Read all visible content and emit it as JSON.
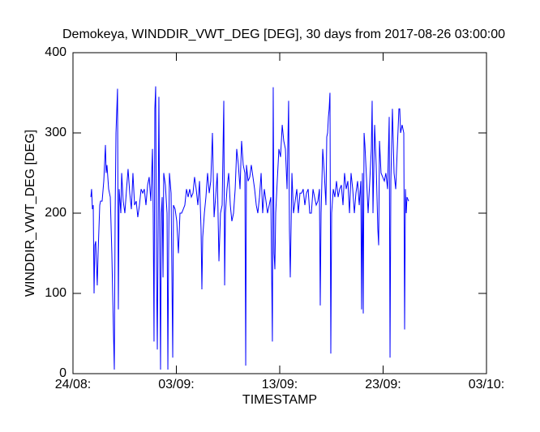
{
  "chart_data": {
    "type": "line",
    "title": "Demokeya, WINDDIR_VWT_DEG [DEG], 30 days from  2017-08-26 03:00:00",
    "x_label": "TIMESTAMP",
    "y_label": "WINDDIR_VWT_DEG [DEG]",
    "color": "#0000ff",
    "xlim": [
      0,
      40
    ],
    "xticks": [
      {
        "value": 0,
        "label": "24/08:"
      },
      {
        "value": 10,
        "label": "03/09:"
      },
      {
        "value": 20,
        "label": "13/09:"
      },
      {
        "value": 30,
        "label": "23/09:"
      },
      {
        "value": 40,
        "label": "03/10:"
      }
    ],
    "ylim": [
      0,
      400
    ],
    "yticks": [
      0,
      100,
      200,
      300,
      400
    ],
    "x": [
      1.73,
      1.8,
      1.88,
      1.96,
      2.04,
      2.12,
      2.2,
      2.35,
      2.43,
      2.59,
      2.67,
      2.82,
      2.98,
      3.14,
      3.21,
      3.29,
      3.45,
      3.61,
      3.76,
      3.92,
      4.0,
      4.08,
      4.16,
      4.31,
      4.39,
      4.47,
      4.63,
      4.71,
      4.86,
      5.02,
      5.18,
      5.33,
      5.49,
      5.65,
      5.8,
      5.96,
      6.12,
      6.27,
      6.43,
      6.59,
      6.75,
      6.9,
      7.06,
      7.22,
      7.37,
      7.53,
      7.69,
      7.76,
      7.84,
      7.92,
      8.0,
      8.08,
      8.16,
      8.31,
      8.39,
      8.47,
      8.55,
      8.63,
      8.71,
      8.78,
      8.94,
      9.1,
      9.18,
      9.25,
      9.33,
      9.49,
      9.65,
      9.72,
      9.88,
      10.04,
      10.2,
      10.35,
      10.51,
      10.67,
      10.82,
      10.98,
      11.14,
      11.29,
      11.45,
      11.61,
      11.76,
      11.92,
      12.08,
      12.24,
      12.39,
      12.47,
      12.55,
      12.71,
      12.86,
      13.02,
      13.18,
      13.33,
      13.49,
      13.65,
      13.8,
      13.96,
      14.12,
      14.27,
      14.43,
      14.59,
      14.67,
      14.75,
      14.9,
      15.06,
      15.22,
      15.37,
      15.53,
      15.69,
      15.84,
      16.0,
      16.16,
      16.31,
      16.47,
      16.63,
      16.71,
      16.78,
      16.94,
      17.1,
      17.25,
      17.41,
      17.57,
      17.73,
      17.88,
      18.04,
      18.2,
      18.35,
      18.51,
      18.67,
      18.82,
      18.98,
      19.14,
      19.29,
      19.37,
      19.45,
      19.53,
      19.61,
      19.76,
      19.92,
      20.08,
      20.24,
      20.39,
      20.55,
      20.71,
      20.86,
      20.94,
      21.02,
      21.18,
      21.33,
      21.49,
      21.65,
      21.8,
      21.96,
      22.12,
      22.27,
      22.43,
      22.59,
      22.75,
      22.9,
      23.06,
      23.22,
      23.37,
      23.53,
      23.69,
      23.84,
      23.92,
      24.0,
      24.16,
      24.31,
      24.47,
      24.55,
      24.63,
      24.71,
      24.78,
      24.86,
      24.94,
      25.02,
      25.18,
      25.33,
      25.49,
      25.65,
      25.8,
      25.96,
      26.12,
      26.27,
      26.43,
      26.59,
      26.75,
      26.9,
      27.06,
      27.22,
      27.37,
      27.53,
      27.69,
      27.84,
      27.92,
      28.0,
      28.08,
      28.16,
      28.24,
      28.39,
      28.55,
      28.71,
      28.86,
      28.94,
      29.02,
      29.18,
      29.33,
      29.49,
      29.57,
      29.65,
      29.8,
      29.96,
      30.12,
      30.27,
      30.43,
      30.59,
      30.67,
      30.75,
      30.9,
      31.06,
      31.22,
      31.37,
      31.53,
      31.61,
      31.69,
      31.84,
      32.0,
      32.08,
      32.16,
      32.24,
      32.31,
      32.47
    ],
    "values": [
      220,
      230,
      205,
      210,
      100,
      160,
      165,
      110,
      150,
      210,
      215,
      215,
      240,
      285,
      250,
      260,
      230,
      220,
      150,
      50,
      5,
      200,
      300,
      355,
      80,
      230,
      200,
      250,
      215,
      200,
      230,
      255,
      225,
      205,
      250,
      210,
      215,
      195,
      210,
      230,
      225,
      230,
      210,
      235,
      245,
      215,
      280,
      200,
      40,
      330,
      358,
      130,
      30,
      345,
      170,
      5,
      200,
      220,
      120,
      250,
      235,
      200,
      5,
      150,
      250,
      225,
      20,
      210,
      205,
      190,
      150,
      200,
      200,
      205,
      210,
      230,
      220,
      230,
      220,
      225,
      245,
      230,
      210,
      240,
      180,
      105,
      170,
      200,
      220,
      250,
      225,
      240,
      300,
      195,
      220,
      250,
      140,
      200,
      210,
      340,
      110,
      200,
      230,
      250,
      210,
      190,
      200,
      230,
      280,
      260,
      230,
      290,
      260,
      250,
      10,
      260,
      240,
      245,
      260,
      245,
      230,
      210,
      200,
      220,
      250,
      200,
      230,
      215,
      200,
      210,
      220,
      40,
      357,
      150,
      130,
      200,
      240,
      280,
      270,
      310,
      290,
      280,
      230,
      340,
      180,
      120,
      250,
      200,
      215,
      230,
      200,
      225,
      225,
      230,
      210,
      225,
      230,
      200,
      200,
      230,
      220,
      210,
      215,
      230,
      85,
      200,
      280,
      250,
      210,
      295,
      300,
      320,
      330,
      350,
      25,
      200,
      230,
      220,
      240,
      220,
      230,
      235,
      210,
      250,
      230,
      240,
      200,
      250,
      230,
      200,
      225,
      240,
      210,
      240,
      80,
      250,
      75,
      300,
      285,
      245,
      200,
      240,
      280,
      340,
      200,
      310,
      260,
      180,
      160,
      290,
      250,
      245,
      240,
      250,
      230,
      320,
      20,
      240,
      330,
      250,
      230,
      280,
      330,
      330,
      300,
      310,
      300,
      55,
      230,
      200,
      220,
      215
    ]
  }
}
